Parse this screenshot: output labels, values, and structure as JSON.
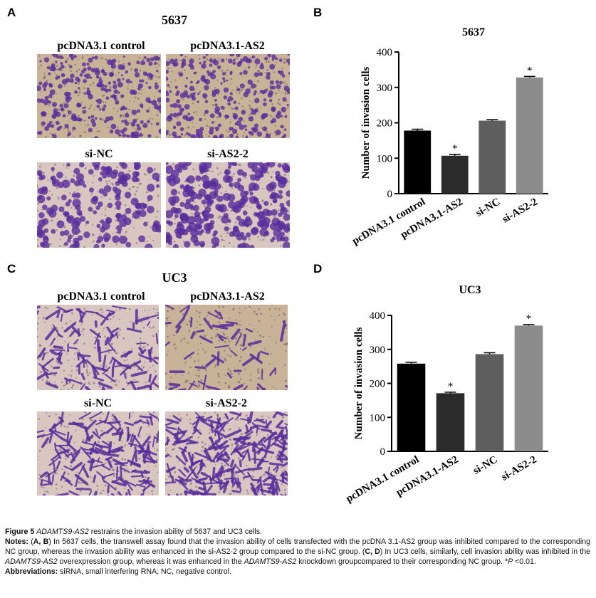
{
  "panels": {
    "A": {
      "letter": "A",
      "title": "5637",
      "labels": [
        "pcDNA3.1 control",
        "pcDNA3.1-AS2",
        "si-NC",
        "si-AS2-2"
      ]
    },
    "B": {
      "letter": "B"
    },
    "C": {
      "letter": "C",
      "title": "UC3",
      "labels": [
        "pcDNA3.1 control",
        "pcDNA3.1-AS2",
        "si-NC",
        "si-AS2-2"
      ]
    },
    "D": {
      "letter": "D"
    }
  },
  "colors": {
    "bar_1": "#000000",
    "bar_2": "#2b2b2b",
    "bar_3": "#5e5e5e",
    "bar_4": "#8c8c8c",
    "stain": "#5a2d9c",
    "membrane_top": "#c9b398",
    "membrane_bottom": "#d9c6c0"
  },
  "chart_data": [
    {
      "panel": "B",
      "type": "bar",
      "title": "5637",
      "ylabel": "Number of invasion cells",
      "xlabel": "",
      "categories": [
        "pcDNA3.1 control",
        "pcDNA3.1-AS2",
        "si-NC",
        "si-AS2-2"
      ],
      "values": [
        178,
        107,
        206,
        328
      ],
      "errors": [
        4,
        4,
        3,
        3
      ],
      "significance": [
        "",
        "*",
        "",
        "*"
      ],
      "ylim": [
        0,
        400
      ],
      "yticks": [
        0,
        100,
        200,
        300,
        400
      ],
      "grid": false
    },
    {
      "panel": "D",
      "type": "bar",
      "title": "UC3",
      "ylabel": "Number of invasion cells",
      "xlabel": "",
      "categories": [
        "pcDNA3.1 control",
        "pcDNA3.1-AS2",
        "si-NC",
        "si-AS2-2"
      ],
      "values": [
        258,
        171,
        286,
        370
      ],
      "errors": [
        4,
        3,
        4,
        3
      ],
      "significance": [
        "",
        "*",
        "",
        "*"
      ],
      "ylim": [
        0,
        400
      ],
      "yticks": [
        0,
        100,
        200,
        300,
        400
      ],
      "grid": false
    }
  ],
  "caption": {
    "figure_label": "Figure 5",
    "figure_gene": "ADAMTS9-AS2",
    "figure_rest": "restrains the invasion ability of 5637 and UC3 cells.",
    "notes_label": "Notes:",
    "notes_open": "(",
    "notes_ab": "A, B",
    "notes_text_1": ") In 5637 cells, the transwell assay found that the invasion ability of cells transfected with the pcDNA 3.1-AS2 group was inhibited compared to the corresponding NC group, whereas the invasion ability was enhanced in the si-AS2-2 group compared to the si-NC group. (",
    "notes_cd": "C, D",
    "notes_text_2": ") In UC3 cells, similarly, cell invasion ability was inhibited in the ",
    "notes_gene_1": "ADAMTS9-AS2",
    "notes_text_3": " overexpression group, whereas it was enhanced in the ",
    "notes_gene_2": "ADAMTS9-AS2",
    "notes_text_4": " knockdown groupcompared to their corresponding NC group.",
    "notes_p_star": "*",
    "notes_p_italic": "P",
    "notes_p_value": " <0.01.",
    "abbr_label": "Abbreviations:",
    "abbr_text": " siRNA, small interfering RNA; NC, negative control."
  }
}
